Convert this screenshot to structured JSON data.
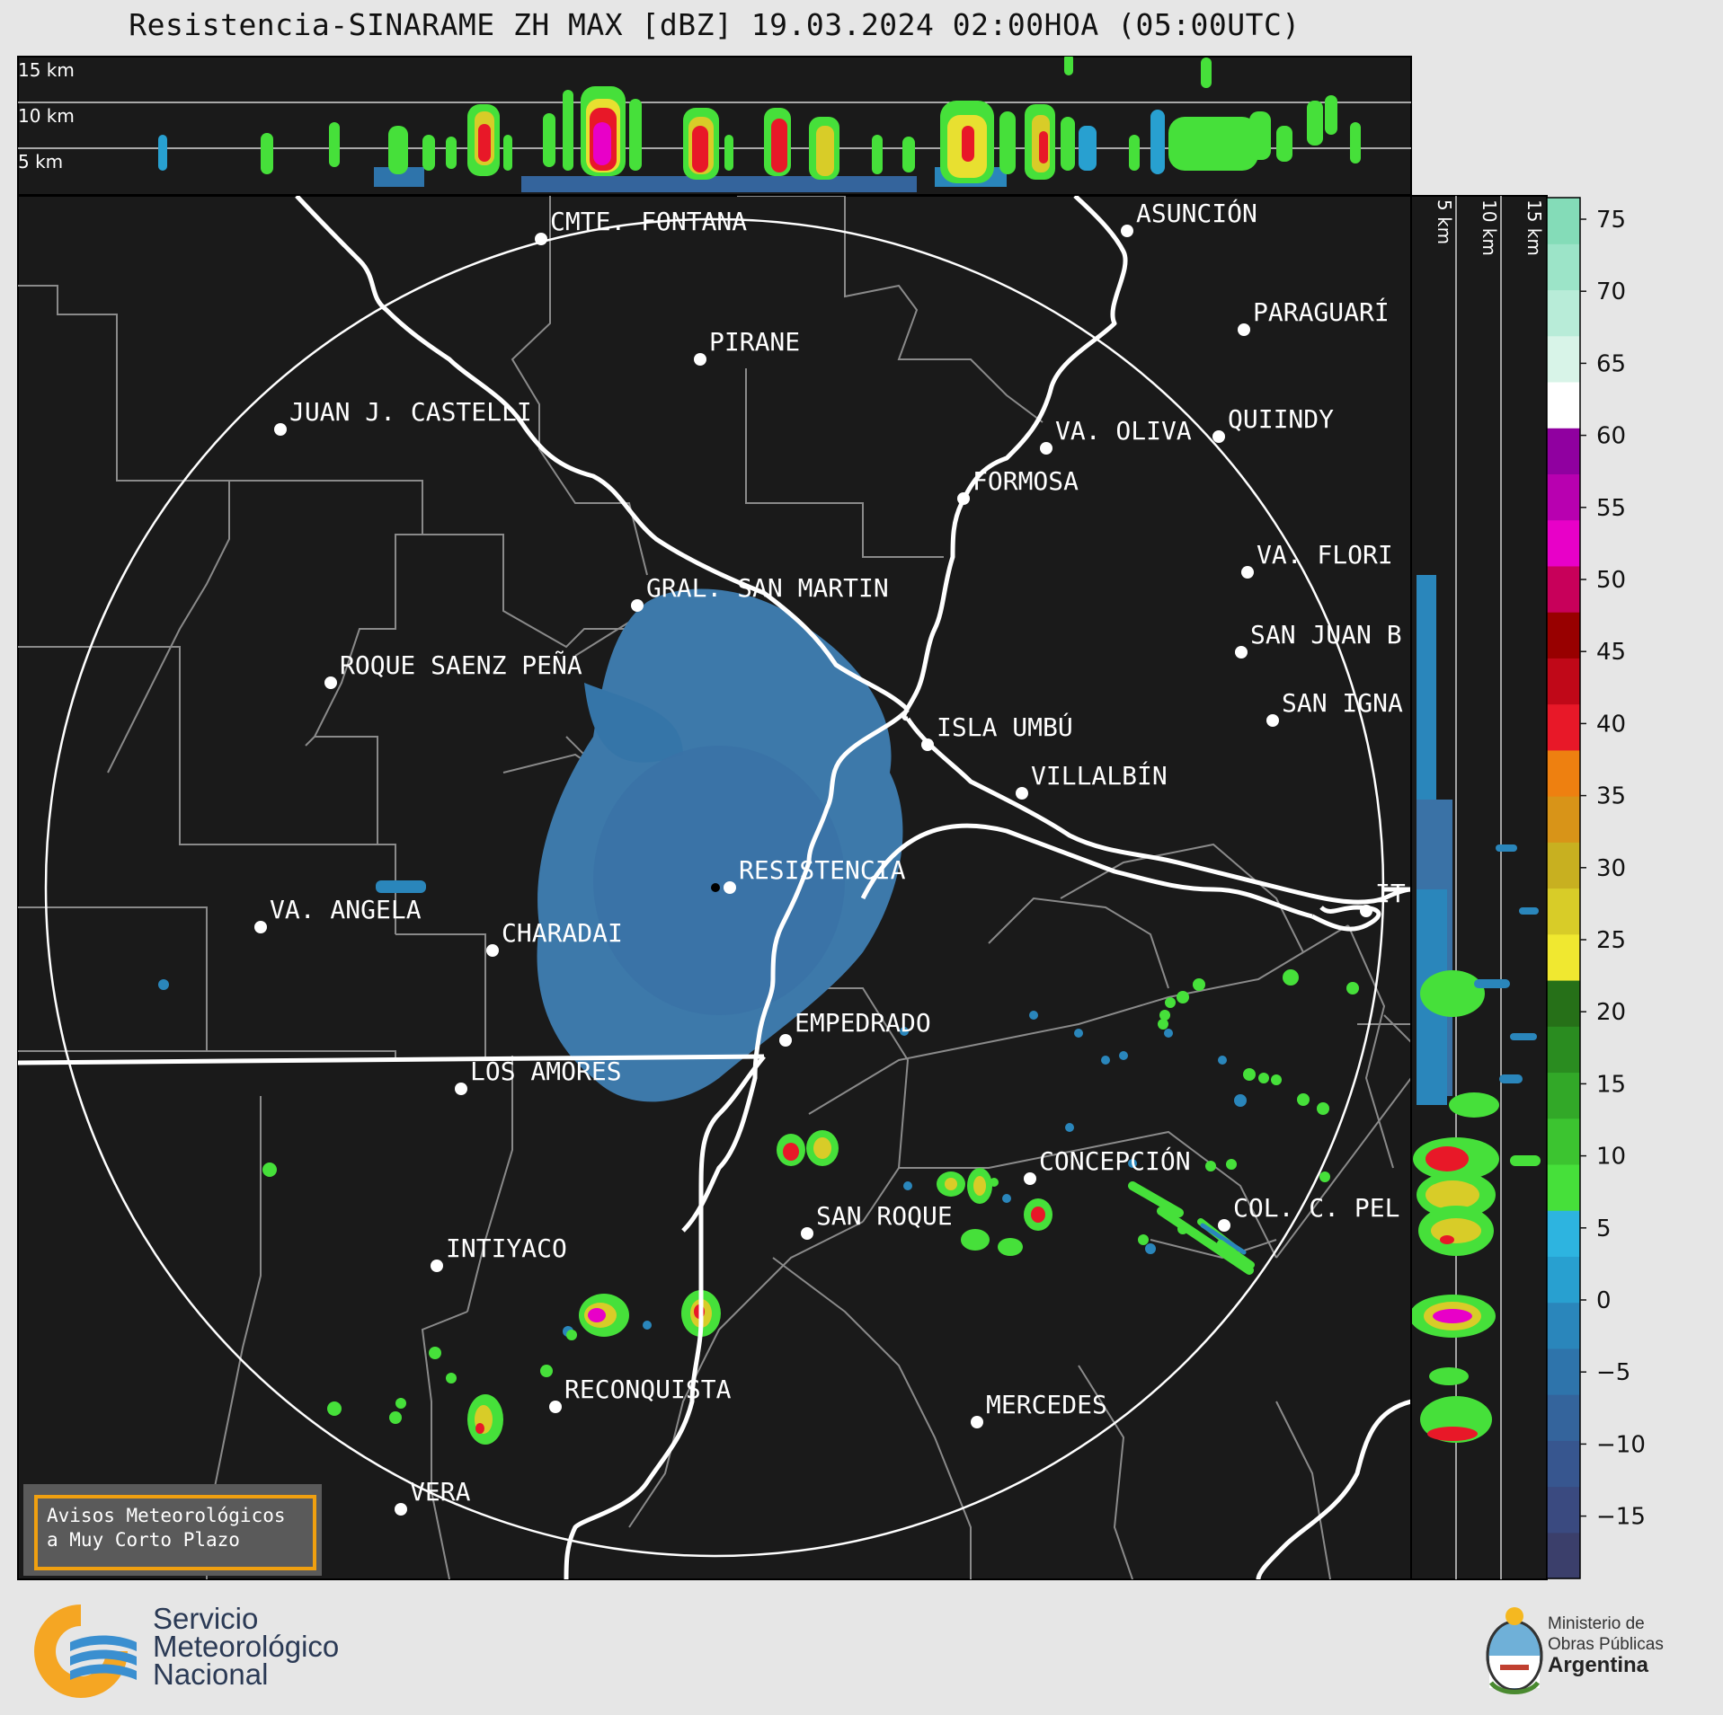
{
  "title": "Resistencia-SINARAME ZH MAX [dBZ] 19.03.2024 02:00HOA (05:00UTC)",
  "top_panel": {
    "altitude_labels": [
      "15 km",
      "10 km",
      "5 km"
    ]
  },
  "side_panel": {
    "altitude_labels": [
      "5 km",
      "10 km",
      "15 km"
    ]
  },
  "colorbar": {
    "ticks": [
      "75",
      "70",
      "65",
      "60",
      "55",
      "50",
      "45",
      "40",
      "35",
      "30",
      "25",
      "20",
      "15",
      "10",
      "5",
      "0",
      "−5",
      "−10",
      "−15"
    ],
    "unit": "dBZ",
    "colors": [
      "#3b3f6b",
      "#3a4a80",
      "#37568f",
      "#34649c",
      "#2e74ab",
      "#2a86bb",
      "#28a0d0",
      "#2db4e0",
      "#46e03a",
      "#3cc430",
      "#32a828",
      "#2a8c20",
      "#267018",
      "#f0e830",
      "#d8cc28",
      "#c8b020",
      "#d89418",
      "#ee8010",
      "#e81828",
      "#c00818",
      "#980000",
      "#c8005a",
      "#e800c8",
      "#b800b0",
      "#9000a0",
      "#ffffff",
      "#d8f4e8",
      "#b8ecd8",
      "#9ce4c8",
      "#84dcb8"
    ]
  },
  "cities": [
    {
      "name": "CMTE. FONTANA"
    },
    {
      "name": "ASUNCIÓN"
    },
    {
      "name": "PARAGUARÍ"
    },
    {
      "name": "PIRANE"
    },
    {
      "name": "JUAN J. CASTELLI"
    },
    {
      "name": "VA. OLIVA"
    },
    {
      "name": "QUIINDY"
    },
    {
      "name": "FORMOSA"
    },
    {
      "name": "VA. FLORI"
    },
    {
      "name": "GRAL. SAN MARTIN"
    },
    {
      "name": "SAN JUAN B"
    },
    {
      "name": "ROQUE SAENZ PEÑA"
    },
    {
      "name": "SAN IGNA"
    },
    {
      "name": "ISLA UMBÚ"
    },
    {
      "name": "VILLALBÍN"
    },
    {
      "name": "RESISTENCIA"
    },
    {
      "name": "VA. ANGELA"
    },
    {
      "name": "CHARADAI"
    },
    {
      "name": "IT"
    },
    {
      "name": "EMPEDRADO"
    },
    {
      "name": "LOS AMORES"
    },
    {
      "name": "CONCEPCIÓN"
    },
    {
      "name": "COL. C. PEL"
    },
    {
      "name": "SAN ROQUE"
    },
    {
      "name": "INTIYACO"
    },
    {
      "name": "RECONQUISTA"
    },
    {
      "name": "MERCEDES"
    },
    {
      "name": "VERA"
    }
  ],
  "notice": {
    "line1": "Avisos Meteorológicos",
    "line2": "a Muy Corto Plazo"
  },
  "logo_smn": {
    "line1": "Servicio",
    "line2": "Meteorológico",
    "line3": "Nacional"
  },
  "logo_ministerio": {
    "line1": "Ministerio de",
    "line2": "Obras Públicas",
    "line3": "Argentina"
  }
}
